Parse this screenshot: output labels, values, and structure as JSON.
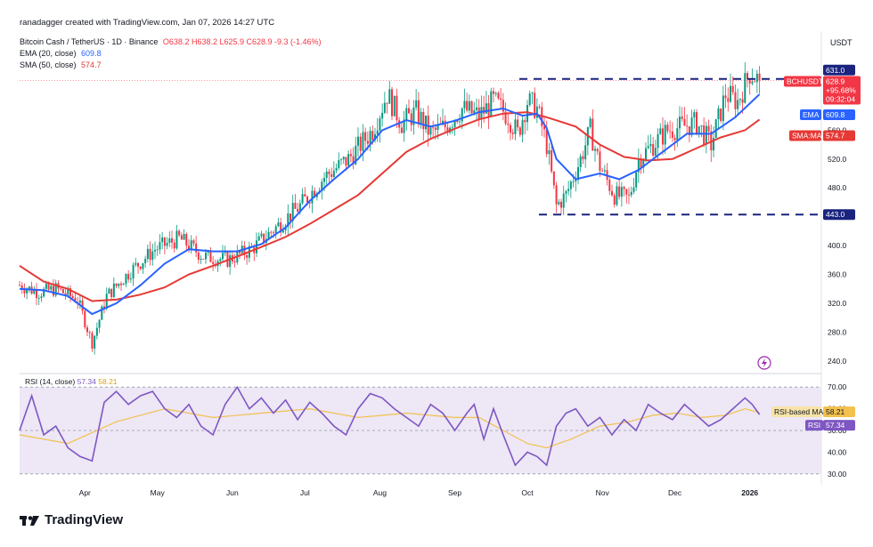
{
  "header": {
    "credit": "ranadagger created with TradingView.com, Jan 07, 2026 14:27 UTC"
  },
  "legend": {
    "symbol": "Bitcoin Cash / TetherUS · 1D · Binance",
    "ohlc": "O638.2 H638.2 L625.9 C628.9 -9.3 (-1.46%)",
    "ema_label": "EMA (20, close)",
    "ema_value": "609.8",
    "sma_label": "SMA (50, close)",
    "sma_value": "574.7",
    "rsi_label": "RSI (14, close)",
    "rsi_value": "57.34",
    "rsi_ma_value": "58.21"
  },
  "currency": "USDT",
  "price_tags": {
    "resistance": "631.0",
    "symbol": "BCHUSDT",
    "last": "628.9",
    "change": "+95.68%",
    "countdown": "09:32:04",
    "ema_tag": "EMA",
    "ema": "609.8",
    "sma_tag": "SMA:MA",
    "sma": "574.7",
    "support": "443.0",
    "rsi_ma_tag": "RSI-based MA",
    "rsi_ma": "58.21",
    "rsi_tag": "RSI",
    "rsi": "57.34"
  },
  "colors": {
    "up": "#089981",
    "down": "#f23645",
    "ema": "#2962ff",
    "sma": "#e53935",
    "rsi": "#7e57c2",
    "rsi_ma": "#f2c14e",
    "dash": "#1a237e",
    "rsi_band": "#ede7f6"
  },
  "brand": "TradingView",
  "chart_data": {
    "type": "candlestick",
    "title": "Bitcoin Cash / TetherUS · 1D · Binance",
    "y_ticks": [
      240,
      280,
      320,
      360,
      400,
      440,
      480,
      520,
      560,
      600
    ],
    "y_tick_labels": [
      "240.0",
      "280.0",
      "320.0",
      "360.0",
      "400.0",
      "440.0",
      "480.0",
      "520.0",
      "560.0",
      "600.0"
    ],
    "ylim": [
      225,
      685
    ],
    "x_ticks": [
      "Apr",
      "May",
      "Jun",
      "Jul",
      "Aug",
      "Sep",
      "Oct",
      "Nov",
      "Dec",
      "2026"
    ],
    "x_tick_days": [
      27,
      57,
      88,
      118,
      149,
      180,
      210,
      241,
      271,
      302
    ],
    "resistance": 631.0,
    "support": 443.0,
    "price_path": [
      [
        0,
        345
      ],
      [
        8,
        335
      ],
      [
        15,
        340
      ],
      [
        24,
        325
      ],
      [
        30,
        265
      ],
      [
        36,
        330
      ],
      [
        46,
        365
      ],
      [
        56,
        395
      ],
      [
        66,
        410
      ],
      [
        76,
        385
      ],
      [
        86,
        380
      ],
      [
        96,
        395
      ],
      [
        106,
        425
      ],
      [
        116,
        455
      ],
      [
        126,
        495
      ],
      [
        136,
        520
      ],
      [
        146,
        560
      ],
      [
        152,
        610
      ],
      [
        158,
        570
      ],
      [
        164,
        585
      ],
      [
        170,
        555
      ],
      [
        176,
        565
      ],
      [
        183,
        590
      ],
      [
        190,
        580
      ],
      [
        196,
        600
      ],
      [
        202,
        580
      ],
      [
        206,
        555
      ],
      [
        210,
        600
      ],
      [
        214,
        590
      ],
      [
        218,
        540
      ],
      [
        222,
        455
      ],
      [
        226,
        470
      ],
      [
        232,
        520
      ],
      [
        236,
        560
      ],
      [
        240,
        510
      ],
      [
        246,
        470
      ],
      [
        252,
        465
      ],
      [
        256,
        520
      ],
      [
        262,
        540
      ],
      [
        268,
        560
      ],
      [
        274,
        565
      ],
      [
        280,
        570
      ],
      [
        286,
        540
      ],
      [
        292,
        610
      ],
      [
        297,
        600
      ],
      [
        302,
        640
      ],
      [
        306,
        628.9
      ]
    ],
    "ema_path": [
      [
        0,
        340
      ],
      [
        10,
        338
      ],
      [
        20,
        330
      ],
      [
        30,
        305
      ],
      [
        40,
        320
      ],
      [
        50,
        345
      ],
      [
        60,
        375
      ],
      [
        70,
        395
      ],
      [
        80,
        392
      ],
      [
        90,
        392
      ],
      [
        100,
        402
      ],
      [
        110,
        425
      ],
      [
        120,
        462
      ],
      [
        130,
        492
      ],
      [
        140,
        520
      ],
      [
        150,
        560
      ],
      [
        160,
        574
      ],
      [
        170,
        565
      ],
      [
        180,
        573
      ],
      [
        190,
        585
      ],
      [
        200,
        590
      ],
      [
        208,
        580
      ],
      [
        214,
        583
      ],
      [
        218,
        563
      ],
      [
        222,
        520
      ],
      [
        230,
        492
      ],
      [
        240,
        500
      ],
      [
        248,
        492
      ],
      [
        256,
        505
      ],
      [
        266,
        530
      ],
      [
        276,
        555
      ],
      [
        286,
        555
      ],
      [
        296,
        578
      ],
      [
        306,
        609.8
      ]
    ],
    "sma_path": [
      [
        0,
        372
      ],
      [
        10,
        350
      ],
      [
        20,
        340
      ],
      [
        30,
        323
      ],
      [
        40,
        325
      ],
      [
        50,
        332
      ],
      [
        60,
        342
      ],
      [
        70,
        360
      ],
      [
        80,
        372
      ],
      [
        90,
        385
      ],
      [
        100,
        398
      ],
      [
        110,
        412
      ],
      [
        120,
        430
      ],
      [
        130,
        450
      ],
      [
        140,
        470
      ],
      [
        150,
        500
      ],
      [
        160,
        530
      ],
      [
        170,
        548
      ],
      [
        180,
        562
      ],
      [
        190,
        575
      ],
      [
        200,
        583
      ],
      [
        210,
        585
      ],
      [
        218,
        578
      ],
      [
        230,
        565
      ],
      [
        240,
        540
      ],
      [
        250,
        523
      ],
      [
        260,
        518
      ],
      [
        270,
        520
      ],
      [
        280,
        535
      ],
      [
        290,
        550
      ],
      [
        300,
        560
      ],
      [
        306,
        574.7
      ]
    ],
    "rsi_ylim": [
      25,
      75
    ],
    "rsi_ticks": [
      30,
      40,
      50,
      60,
      70
    ],
    "rsi_tick_labels": [
      "30.00",
      "40.00",
      "50.00",
      "60.00",
      "70.00"
    ],
    "rsi_band": [
      30,
      70
    ],
    "rsi_path": [
      [
        0,
        50
      ],
      [
        5,
        66
      ],
      [
        10,
        48
      ],
      [
        15,
        52
      ],
      [
        20,
        42
      ],
      [
        25,
        38
      ],
      [
        30,
        36
      ],
      [
        35,
        63
      ],
      [
        40,
        68
      ],
      [
        45,
        62
      ],
      [
        50,
        66
      ],
      [
        55,
        68
      ],
      [
        60,
        60
      ],
      [
        65,
        56
      ],
      [
        70,
        62
      ],
      [
        75,
        52
      ],
      [
        80,
        48
      ],
      [
        85,
        62
      ],
      [
        90,
        70
      ],
      [
        95,
        60
      ],
      [
        100,
        65
      ],
      [
        105,
        58
      ],
      [
        110,
        64
      ],
      [
        115,
        55
      ],
      [
        120,
        63
      ],
      [
        125,
        58
      ],
      [
        130,
        52
      ],
      [
        135,
        48
      ],
      [
        140,
        60
      ],
      [
        145,
        67
      ],
      [
        150,
        65
      ],
      [
        155,
        60
      ],
      [
        160,
        56
      ],
      [
        165,
        52
      ],
      [
        170,
        62
      ],
      [
        175,
        58
      ],
      [
        180,
        50
      ],
      [
        185,
        58
      ],
      [
        188,
        62
      ],
      [
        192,
        46
      ],
      [
        196,
        60
      ],
      [
        200,
        48
      ],
      [
        205,
        34
      ],
      [
        210,
        40
      ],
      [
        214,
        38
      ],
      [
        218,
        34
      ],
      [
        222,
        52
      ],
      [
        226,
        58
      ],
      [
        230,
        60
      ],
      [
        235,
        52
      ],
      [
        240,
        56
      ],
      [
        245,
        48
      ],
      [
        250,
        55
      ],
      [
        255,
        50
      ],
      [
        260,
        62
      ],
      [
        265,
        58
      ],
      [
        270,
        55
      ],
      [
        275,
        62
      ],
      [
        280,
        57
      ],
      [
        285,
        52
      ],
      [
        290,
        55
      ],
      [
        295,
        60
      ],
      [
        300,
        65
      ],
      [
        303,
        62
      ],
      [
        306,
        57.34
      ]
    ],
    "rsi_ma_path": [
      [
        0,
        48
      ],
      [
        20,
        44
      ],
      [
        40,
        54
      ],
      [
        60,
        60
      ],
      [
        80,
        56
      ],
      [
        100,
        58
      ],
      [
        120,
        60
      ],
      [
        140,
        56
      ],
      [
        160,
        58
      ],
      [
        180,
        56
      ],
      [
        190,
        56
      ],
      [
        200,
        50
      ],
      [
        210,
        44
      ],
      [
        218,
        42
      ],
      [
        228,
        46
      ],
      [
        240,
        52
      ],
      [
        252,
        54
      ],
      [
        262,
        57
      ],
      [
        272,
        58
      ],
      [
        282,
        56
      ],
      [
        292,
        57
      ],
      [
        300,
        60
      ],
      [
        306,
        58.21
      ]
    ]
  }
}
